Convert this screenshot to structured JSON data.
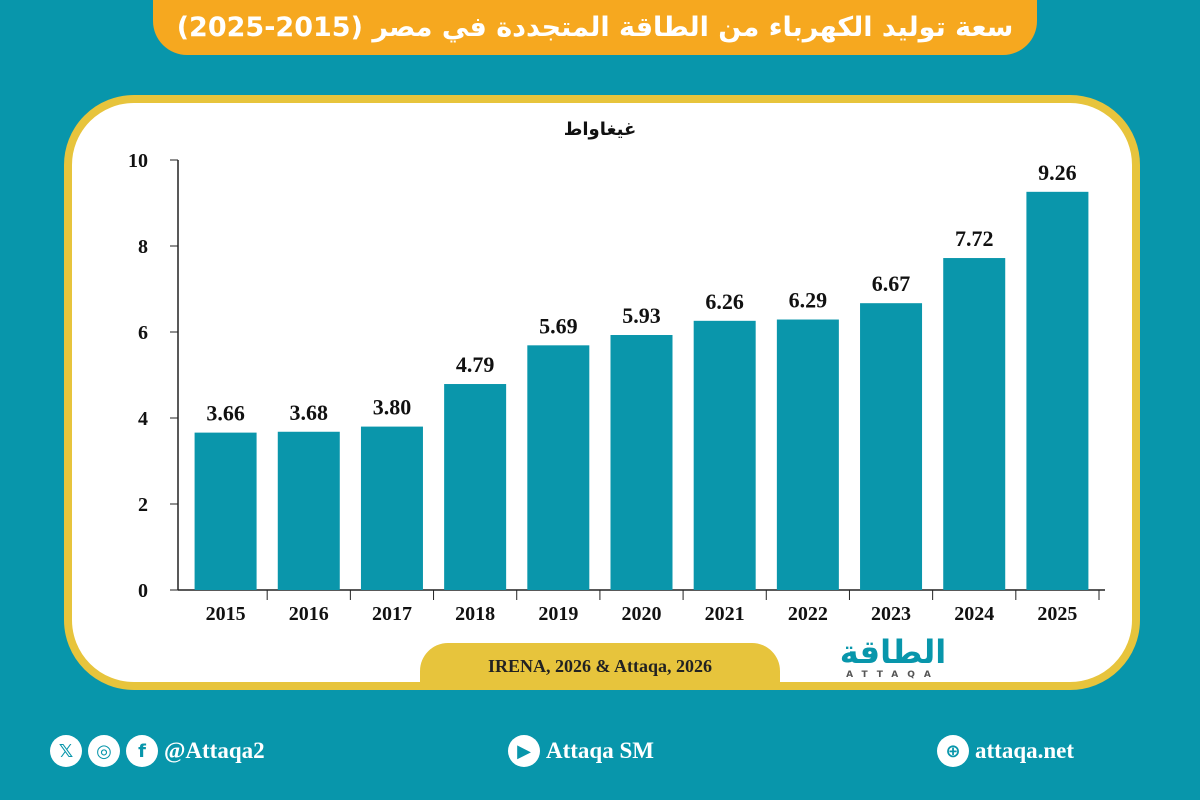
{
  "title": "سعة توليد الكهرباء من الطاقة المتجددة في مصر (2015-2025)",
  "source": "IRENA, 2026 & Attaqa, 2026",
  "logo": {
    "arabic": "الطاقة",
    "latin": "ATTAQA"
  },
  "footer": {
    "social": "@Attaqa2",
    "youtube": "Attaqa SM",
    "website": "attaqa.net"
  },
  "colors": {
    "background": "#0896ab",
    "bar": "#0a96ab",
    "title_bg": "#f6a81f",
    "frame": "#e7c43c"
  },
  "chart_data": {
    "type": "bar",
    "ylabel": "غيغاواط",
    "categories": [
      "2015",
      "2016",
      "2017",
      "2018",
      "2019",
      "2020",
      "2021",
      "2022",
      "2023",
      "2024",
      "2025"
    ],
    "values": [
      3.66,
      3.68,
      3.8,
      4.79,
      5.69,
      5.93,
      6.26,
      6.29,
      6.67,
      7.72,
      9.26
    ],
    "labels": [
      "3.66",
      "3.68",
      "3.80",
      "4.79",
      "5.69",
      "5.93",
      "6.26",
      "6.29",
      "6.67",
      "7.72",
      "9.26"
    ],
    "ylim": [
      0,
      10
    ],
    "yticks": [
      "0",
      "2",
      "4",
      "6",
      "8",
      "10"
    ],
    "grid": false
  }
}
